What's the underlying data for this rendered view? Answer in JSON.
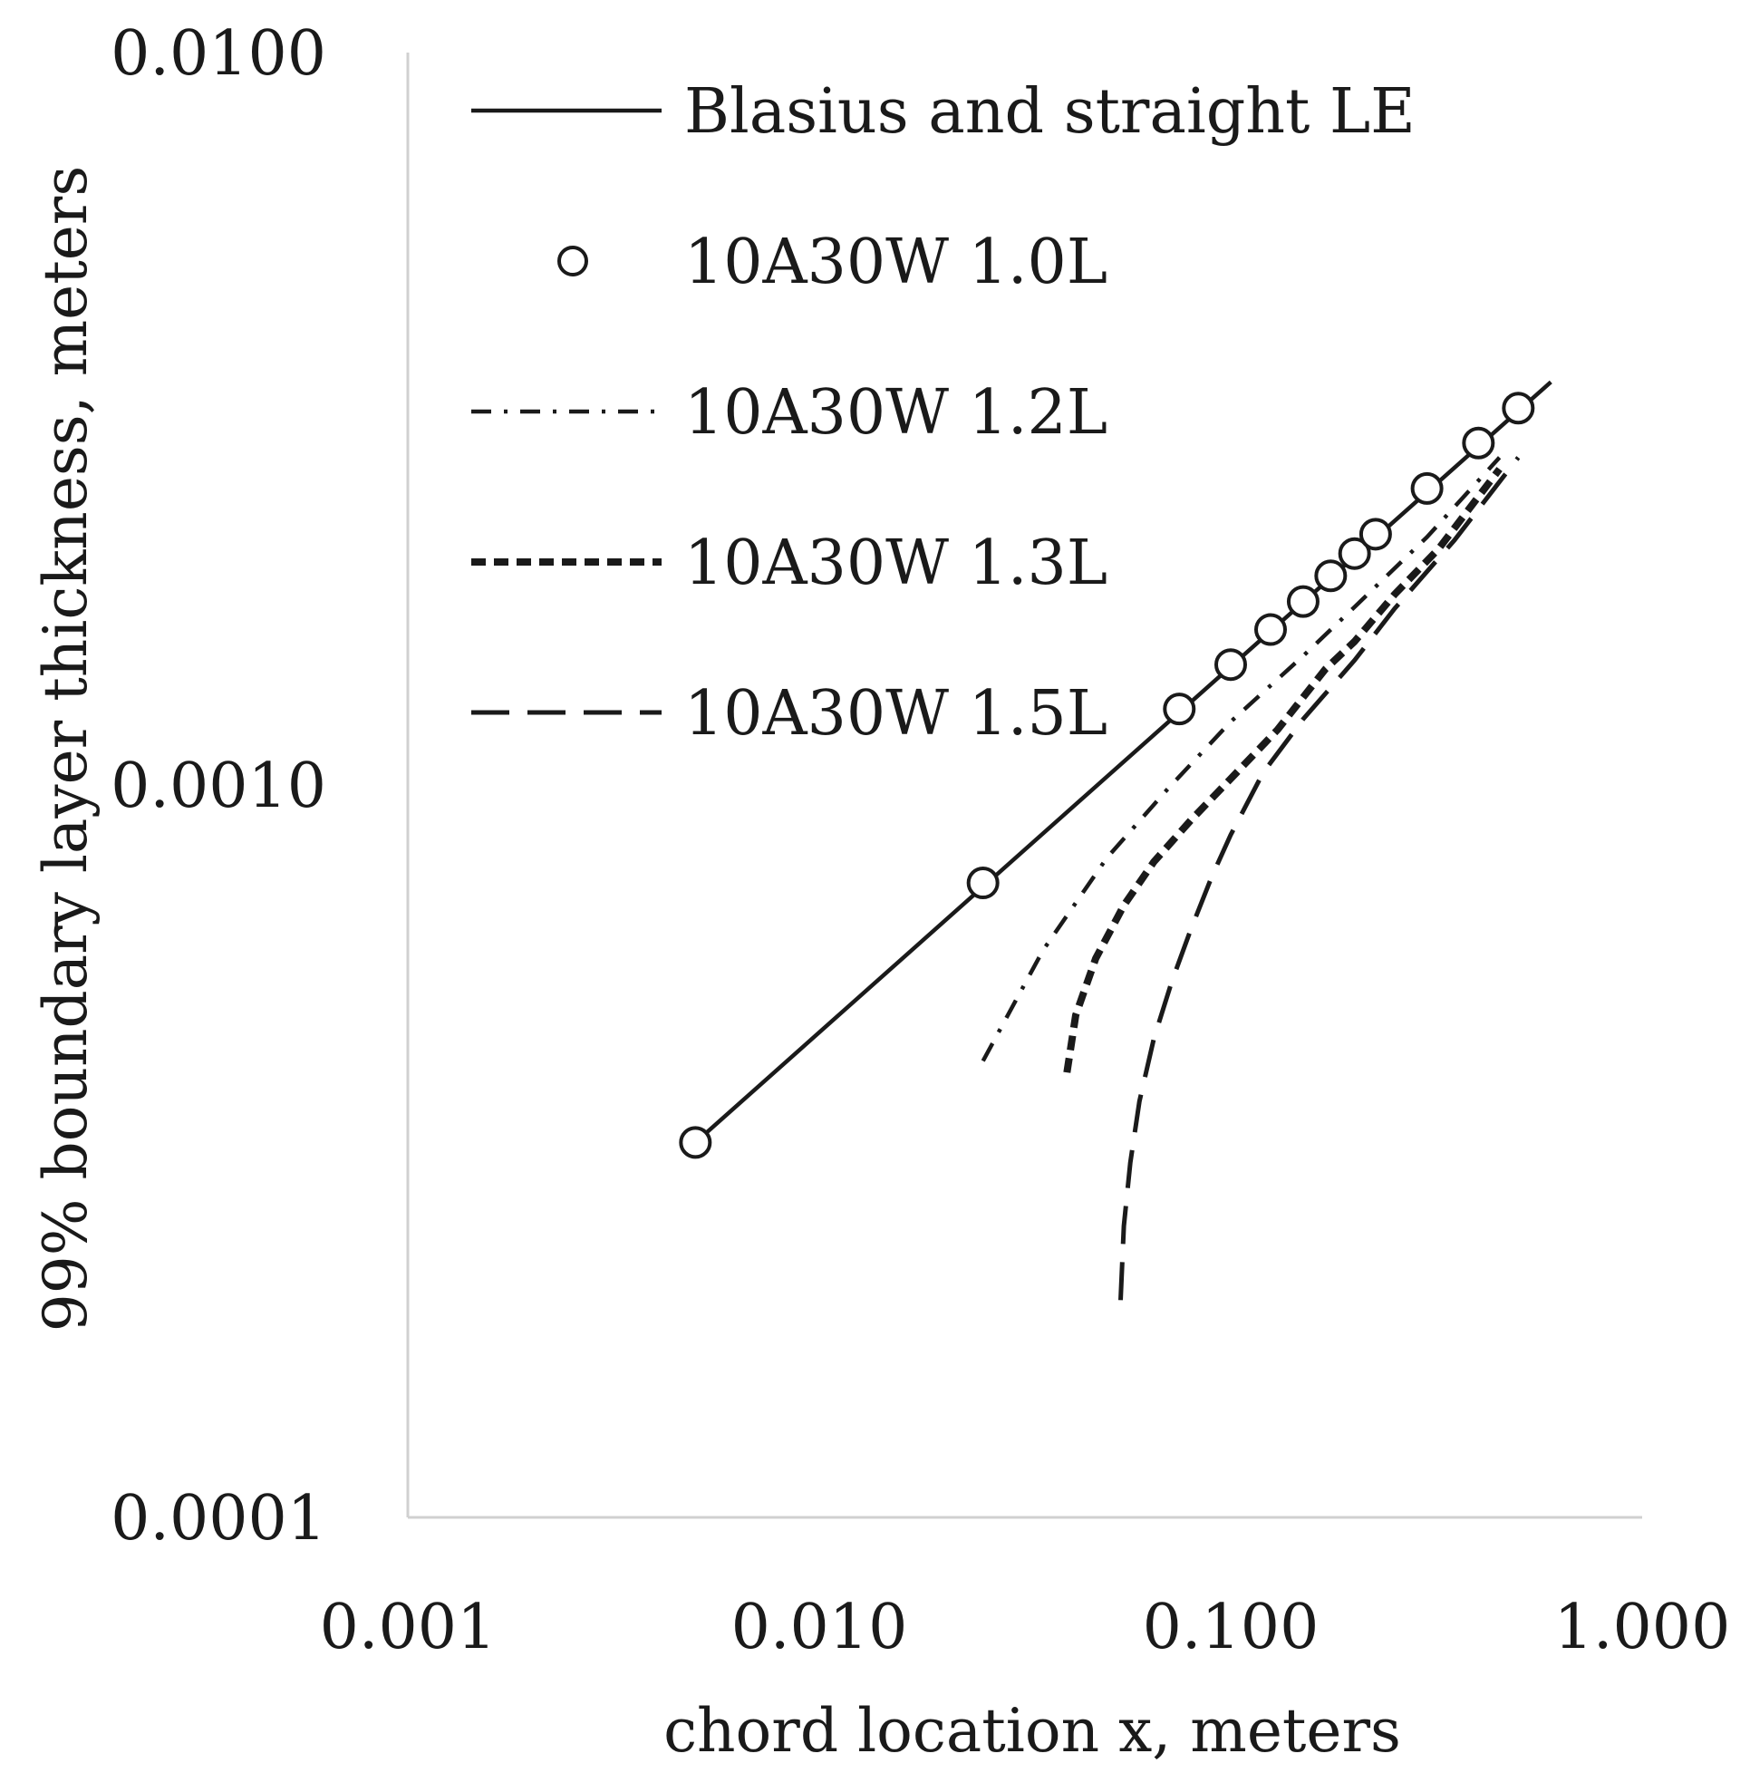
{
  "chart_data": {
    "type": "scatter",
    "xlabel": "chord location x, meters",
    "ylabel": "99% boundary layer thickness, meters",
    "x_scale": "log",
    "y_scale": "log",
    "xlim": [
      0.001,
      1.0
    ],
    "ylim": [
      0.0001,
      0.01
    ],
    "x_ticks": [
      "0.001",
      "0.010",
      "0.100",
      "1.000"
    ],
    "y_ticks": [
      "0.0001",
      "0.0010",
      "0.0100"
    ],
    "grid": false,
    "legend_position": "top-left",
    "series": [
      {
        "name": "Blasius and straight LE",
        "style": "solid-line",
        "x": [
          0.005,
          0.6
        ],
        "y": [
          0.000325,
          0.00355
        ]
      },
      {
        "name": "10A30W 1.0L",
        "style": "open-circle-marker",
        "x": [
          0.005,
          0.025,
          0.075,
          0.1,
          0.125,
          0.15,
          0.175,
          0.2,
          0.225,
          0.3,
          0.4,
          0.5
        ],
        "y": [
          0.000325,
          0.000735,
          0.00127,
          0.00146,
          0.00163,
          0.00178,
          0.00193,
          0.00207,
          0.0022,
          0.00254,
          0.00293,
          0.00327
        ]
      },
      {
        "name": "10A30W 1.2L",
        "style": "dash-dot-line",
        "x": [
          0.025,
          0.035,
          0.05,
          0.07,
          0.1,
          0.15,
          0.2,
          0.3,
          0.45
        ],
        "y": [
          0.00042,
          0.000595,
          0.000795,
          0.000985,
          0.00122,
          0.0015,
          0.00175,
          0.00218,
          0.0028
        ]
      },
      {
        "name": "10A30W 1.3L",
        "style": "short-dash-line",
        "x": [
          0.04,
          0.042,
          0.047,
          0.055,
          0.065,
          0.08,
          0.1,
          0.13,
          0.17,
          0.2,
          0.25,
          0.32,
          0.45
        ],
        "y": [
          0.000405,
          0.000485,
          0.00058,
          0.000685,
          0.000785,
          0.000895,
          0.00102,
          0.00119,
          0.00144,
          0.00157,
          0.00182,
          0.0021,
          0.0027
        ]
      },
      {
        "name": "10A30W 1.5L",
        "style": "long-dash-line",
        "x": [
          0.054,
          0.055,
          0.057,
          0.06,
          0.065,
          0.072,
          0.08,
          0.09,
          0.1,
          0.12,
          0.15,
          0.2,
          0.25,
          0.35,
          0.5
        ],
        "y": [
          0.000198,
          0.00025,
          0.000305,
          0.00037,
          0.00045,
          0.00054,
          0.000635,
          0.00075,
          0.000855,
          0.00104,
          0.00123,
          0.00148,
          0.00174,
          0.00216,
          0.0028
        ]
      }
    ]
  }
}
